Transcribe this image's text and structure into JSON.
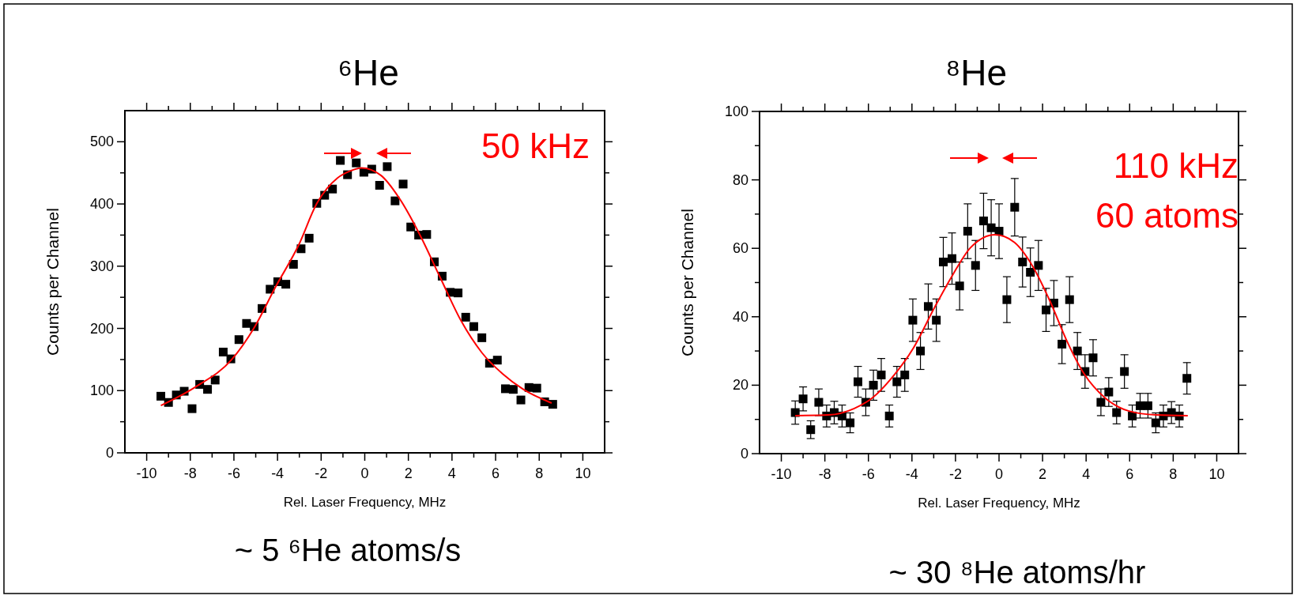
{
  "chart_data": [
    {
      "type": "scatter",
      "title": "⁶He",
      "xlabel": "Rel. Laser Frequency, MHz",
      "ylabel": "Counts per Channel",
      "xlim": [
        -11,
        11
      ],
      "ylim": [
        0,
        550
      ],
      "xticks": [
        -10,
        {
          "value": -9,
          "label": null
        },
        -8,
        {
          "value": -7,
          "label": null
        },
        -6,
        {
          "value": -5,
          "label": null
        },
        -4,
        {
          "value": -3,
          "label": null
        },
        -2,
        {
          "value": -1,
          "label": null
        },
        0,
        {
          "value": 1,
          "label": null
        },
        2,
        {
          "value": 3,
          "label": null
        },
        4,
        {
          "value": 5,
          "label": null
        },
        6,
        {
          "value": 7,
          "label": null
        },
        8,
        {
          "value": 9,
          "label": null
        },
        10
      ],
      "yticks": [
        0,
        {
          "value": 50,
          "label": null
        },
        100,
        {
          "value": 150,
          "label": null
        },
        200,
        {
          "value": 250,
          "label": null
        },
        300,
        {
          "value": 350,
          "label": null
        },
        400,
        {
          "value": 450,
          "label": null
        },
        500
      ],
      "series": [
        {
          "type": "scatter",
          "color": "#000000",
          "marker": "square",
          "x": [
            -9.35,
            -9.0,
            -8.64,
            -8.28,
            -7.92,
            -7.57,
            -7.21,
            -6.86,
            -6.49,
            -6.14,
            -5.77,
            -5.42,
            -5.07,
            -4.71,
            -4.34,
            -3.99,
            -3.62,
            -3.27,
            -2.92,
            -2.55,
            -2.2,
            -1.84,
            -1.48,
            -1.12,
            -0.79,
            -0.39,
            -0.04,
            0.32,
            0.68,
            1.03,
            1.39,
            1.76,
            2.11,
            2.47,
            2.84,
            3.19,
            3.55,
            3.92,
            4.28,
            4.63,
            5.0,
            5.37,
            5.72,
            6.08,
            6.45,
            6.81,
            7.16,
            7.53,
            7.89,
            8.25,
            8.62
          ],
          "values": [
            91,
            81,
            93,
            99,
            71,
            110,
            102,
            117,
            162,
            151,
            182,
            208,
            203,
            232,
            263,
            275,
            271,
            303,
            328,
            345,
            401,
            414,
            424,
            470,
            447,
            466,
            451,
            456,
            430,
            460,
            405,
            432,
            363,
            350,
            351,
            307,
            284,
            258,
            257,
            218,
            203,
            185,
            144,
            149,
            103,
            102,
            85,
            105,
            104,
            82,
            78
          ]
        },
        {
          "type": "line",
          "color": "#ff0000",
          "marker": "none",
          "x": [
            -9.35,
            -7.76,
            -6.1,
            -5.04,
            -4.1,
            -3.03,
            -2.21,
            -1.24,
            -0.67,
            -0.15,
            0.74,
            1.57,
            2.52,
            3.47,
            4.42,
            5.37,
            6.32,
            7.27,
            8.57
          ],
          "values": [
            76,
            106,
            150,
            203,
            266,
            334,
            400,
            442,
            453,
            458,
            446,
            410,
            351,
            281,
            212,
            161,
            127,
            102,
            80
          ]
        }
      ],
      "annotations": [
        "50 kHz",
        "~ 5 ⁶He atoms/s"
      ]
    },
    {
      "type": "scatter",
      "title": "⁸He",
      "xlabel": "Rel. Laser Frequency, MHz",
      "ylabel": "Counts per Channel",
      "xlim": [
        -11,
        11
      ],
      "ylim": [
        0,
        100
      ],
      "xticks": [
        -10,
        {
          "value": -9,
          "label": null
        },
        -8,
        {
          "value": -7,
          "label": null
        },
        -6,
        {
          "value": -5,
          "label": null
        },
        -4,
        {
          "value": -3,
          "label": null
        },
        -2,
        {
          "value": -1,
          "label": null
        },
        0,
        {
          "value": 1,
          "label": null
        },
        2,
        {
          "value": 3,
          "label": null
        },
        4,
        {
          "value": 5,
          "label": null
        },
        6,
        {
          "value": 7,
          "label": null
        },
        8,
        {
          "value": 9,
          "label": null
        },
        10
      ],
      "yticks": [
        0,
        {
          "value": 10,
          "label": null
        },
        20,
        {
          "value": 30,
          "label": null
        },
        40,
        {
          "value": 50,
          "label": null
        },
        60,
        {
          "value": 70,
          "label": null
        },
        80,
        {
          "value": 90,
          "label": null
        },
        100
      ],
      "series": [
        {
          "type": "scatter",
          "color": "#000000",
          "marker": "square",
          "x": [
            -9.36,
            -9.0,
            -8.65,
            -8.28,
            -7.92,
            -7.57,
            -7.21,
            -6.84,
            -6.48,
            -6.12,
            -5.77,
            -5.41,
            -5.04,
            -4.69,
            -4.33,
            -3.96,
            -3.61,
            -3.25,
            -2.88,
            -2.56,
            -2.16,
            -1.81,
            -1.44,
            -1.08,
            -0.71,
            -0.36,
            0.0,
            0.36,
            0.72,
            1.08,
            1.44,
            1.81,
            2.16,
            2.52,
            2.89,
            3.24,
            3.6,
            3.95,
            4.32,
            4.68,
            5.04,
            5.4,
            5.76,
            6.12,
            6.48,
            6.84,
            7.2,
            7.55,
            7.92,
            8.28,
            8.63
          ],
          "values": [
            12,
            16,
            7,
            15,
            11,
            12,
            11,
            9,
            21,
            15,
            20,
            23,
            11,
            21,
            23,
            39,
            30,
            43,
            39,
            56,
            57,
            49,
            65,
            55,
            68,
            66,
            65,
            45,
            72,
            56,
            53,
            55,
            42,
            44,
            32,
            45,
            30,
            24,
            28,
            15,
            18,
            12,
            24,
            11,
            14,
            14,
            9,
            11,
            12,
            11,
            22
          ],
          "errors": [
            3.4,
            3.5,
            2.6,
            3.9,
            3.2,
            3.3,
            3.2,
            2.9,
            4.5,
            3.9,
            4.4,
            4.8,
            3.2,
            4.5,
            4.8,
            6.2,
            5.4,
            6.6,
            6.2,
            7.2,
            7.5,
            7.0,
            8.0,
            7.3,
            8.1,
            8.2,
            8.0,
            6.7,
            8.4,
            7.3,
            7.1,
            7.3,
            6.3,
            6.6,
            5.7,
            6.7,
            5.4,
            4.9,
            5.3,
            3.9,
            4.2,
            3.3,
            4.9,
            3.2,
            3.6,
            3.6,
            2.9,
            3.2,
            3.2,
            3.2,
            4.6
          ]
        },
        {
          "type": "line",
          "color": "#ff0000",
          "marker": "none",
          "x": [
            -9.36,
            -7.84,
            -6.65,
            -5.82,
            -4.88,
            -3.93,
            -2.98,
            -2.14,
            -1.31,
            -0.18,
            0.71,
            1.54,
            2.38,
            3.09,
            3.92,
            4.87,
            5.94,
            7.24,
            8.67
          ],
          "values": [
            11.1,
            11.3,
            13.2,
            16.3,
            22.5,
            30.9,
            42.5,
            52.1,
            60.2,
            64.0,
            61.7,
            54.8,
            44.0,
            33.3,
            23.2,
            16.3,
            12.5,
            11.3,
            11.1
          ]
        }
      ],
      "annotations": [
        "110 kHz",
        "60 atoms",
        "~ 30 ⁸He atoms/hr"
      ]
    }
  ]
}
